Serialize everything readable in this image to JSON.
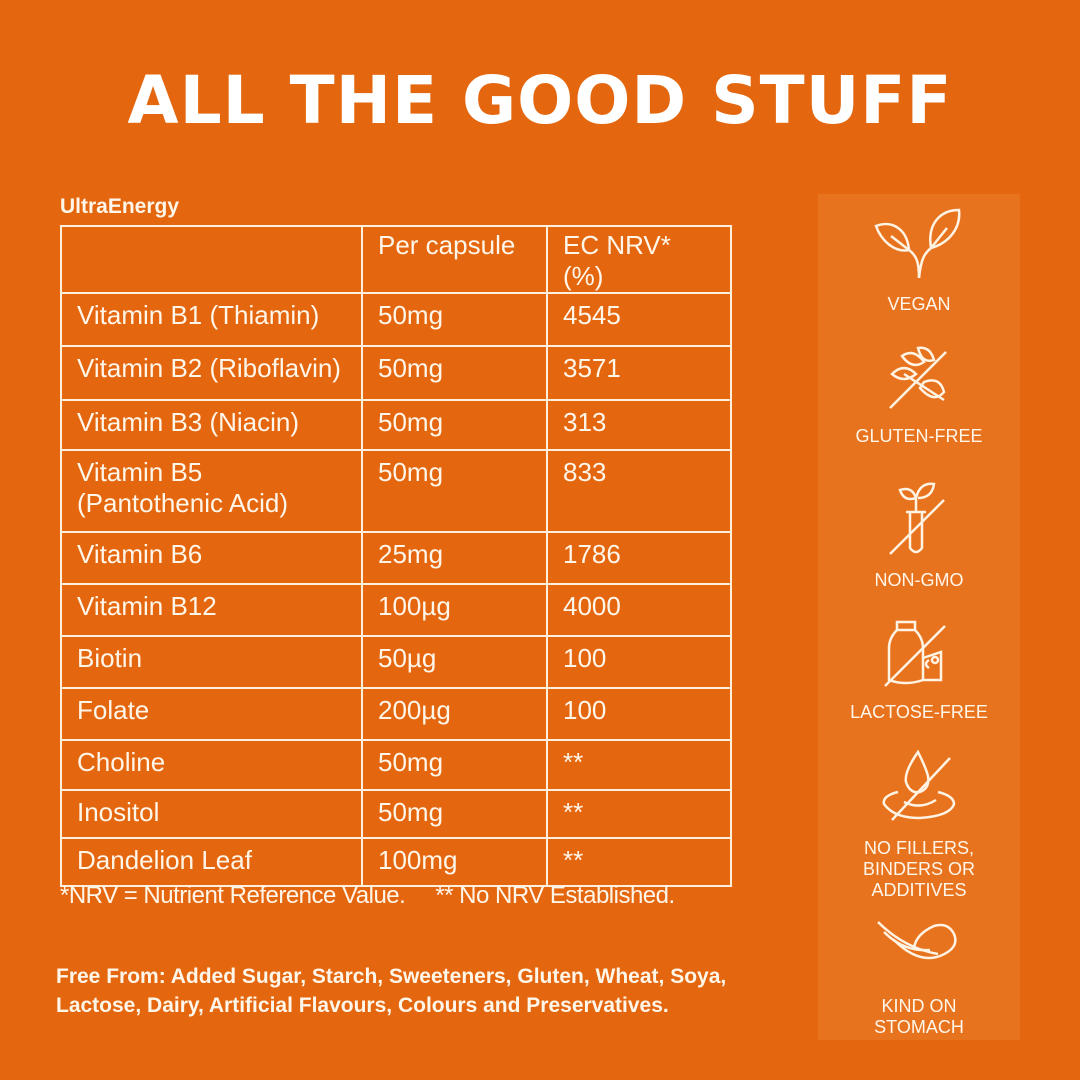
{
  "title": "ALL THE GOOD STUFF",
  "product": "UltraEnergy",
  "table": {
    "headers": [
      "",
      "Per capsule",
      "EC NRV* (%)"
    ],
    "rows": [
      [
        "Vitamin B1 (Thiamin)",
        "50mg",
        "4545"
      ],
      [
        "Vitamin B2 (Riboflavin)",
        "50mg",
        "3571"
      ],
      [
        "Vitamin B3 (Niacin)",
        "50mg",
        "313"
      ],
      [
        "Vitamin B5 (Pantothenic Acid)",
        "50mg",
        "833"
      ],
      [
        "Vitamin B6",
        "25mg",
        "1786"
      ],
      [
        "Vitamin B12",
        "100µg",
        "4000"
      ],
      [
        "Biotin",
        "50µg",
        "100"
      ],
      [
        "Folate",
        "200µg",
        "100"
      ],
      [
        "Choline",
        "50mg",
        "**"
      ],
      [
        "Inositol",
        "50mg",
        "**"
      ],
      [
        "Dandelion Leaf",
        "100mg",
        "**"
      ]
    ]
  },
  "footnotes": [
    "*NRV = Nutrient Reference Value.",
    "** No NRV Established."
  ],
  "free_from": "Free From: Added Sugar, Starch, Sweeteners, Gluten, Wheat, Soya, Lactose, Dairy, Artificial Flavours, Colours and Preservatives.",
  "badges": [
    {
      "label": "VEGAN",
      "icon": "leaf-sprout-icon"
    },
    {
      "label": "GLUTEN-FREE",
      "icon": "wheat-crossed-icon"
    },
    {
      "label": "NON-GMO",
      "icon": "test-tube-plant-crossed-icon"
    },
    {
      "label": "LACTOSE-FREE",
      "icon": "milk-cheese-crossed-icon"
    },
    {
      "label": "NO FILLERS, BINDERS OR ADDITIVES",
      "icon": "drop-crossed-icon"
    },
    {
      "label": "KIND ON STOMACH",
      "icon": "feather-icon"
    }
  ]
}
